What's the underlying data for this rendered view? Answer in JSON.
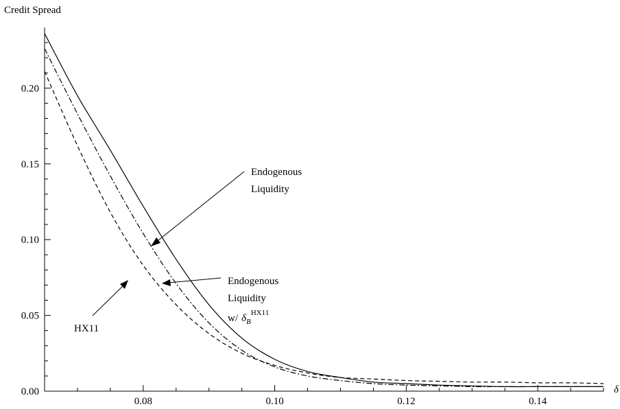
{
  "chart_data": {
    "type": "line",
    "title": "",
    "ylabel": "Credit Spread",
    "xlabel": "δ",
    "xlim": [
      0.065,
      0.15
    ],
    "ylim": [
      0.0,
      0.24
    ],
    "x_ticks": [
      "0.08",
      "0.10",
      "0.12",
      "0.14"
    ],
    "y_ticks": [
      "0.00",
      "0.05",
      "0.10",
      "0.15",
      "0.20"
    ],
    "series": [
      {
        "name": "Endogenous Liquidity",
        "style": "solid",
        "x": [
          0.065,
          0.07,
          0.075,
          0.08,
          0.085,
          0.09,
          0.095,
          0.1,
          0.105,
          0.11,
          0.115,
          0.12,
          0.125,
          0.13,
          0.135,
          0.14,
          0.145,
          0.15
        ],
        "y": [
          0.236,
          0.195,
          0.159,
          0.122,
          0.087,
          0.057,
          0.035,
          0.021,
          0.013,
          0.009,
          0.006,
          0.005,
          0.004,
          0.0035,
          0.003,
          0.003,
          0.003,
          0.003
        ]
      },
      {
        "name": "Endogenous Liquidity w/ δ_B^HX11",
        "style": "dashdot",
        "x": [
          0.065,
          0.07,
          0.075,
          0.08,
          0.085,
          0.09,
          0.095,
          0.1,
          0.105,
          0.11,
          0.115,
          0.12,
          0.125,
          0.13,
          0.135,
          0.14,
          0.145,
          0.15
        ],
        "y": [
          0.226,
          0.183,
          0.142,
          0.104,
          0.071,
          0.045,
          0.027,
          0.016,
          0.01,
          0.007,
          0.005,
          0.004,
          0.0035,
          0.003,
          0.003,
          0.003,
          0.003,
          0.003
        ]
      },
      {
        "name": "HX11",
        "style": "dashed",
        "x": [
          0.065,
          0.07,
          0.075,
          0.08,
          0.085,
          0.09,
          0.095,
          0.1,
          0.105,
          0.11,
          0.115,
          0.12,
          0.125,
          0.13,
          0.135,
          0.14,
          0.145,
          0.15
        ],
        "y": [
          0.211,
          0.162,
          0.118,
          0.083,
          0.057,
          0.038,
          0.025,
          0.017,
          0.012,
          0.009,
          0.008,
          0.007,
          0.0065,
          0.006,
          0.006,
          0.0055,
          0.0055,
          0.005
        ]
      }
    ],
    "annotations": [
      {
        "lines": [
          "Endogenous",
          "Liquidity"
        ],
        "target_series": 0
      },
      {
        "lines": [
          "Endogenous",
          "Liquidity"
        ],
        "prefix": "w/",
        "symbol": "δ",
        "sub": "B",
        "sup": "HX11",
        "target_series": 1
      },
      {
        "lines": [
          "HX11"
        ],
        "target_series": 2
      }
    ]
  }
}
